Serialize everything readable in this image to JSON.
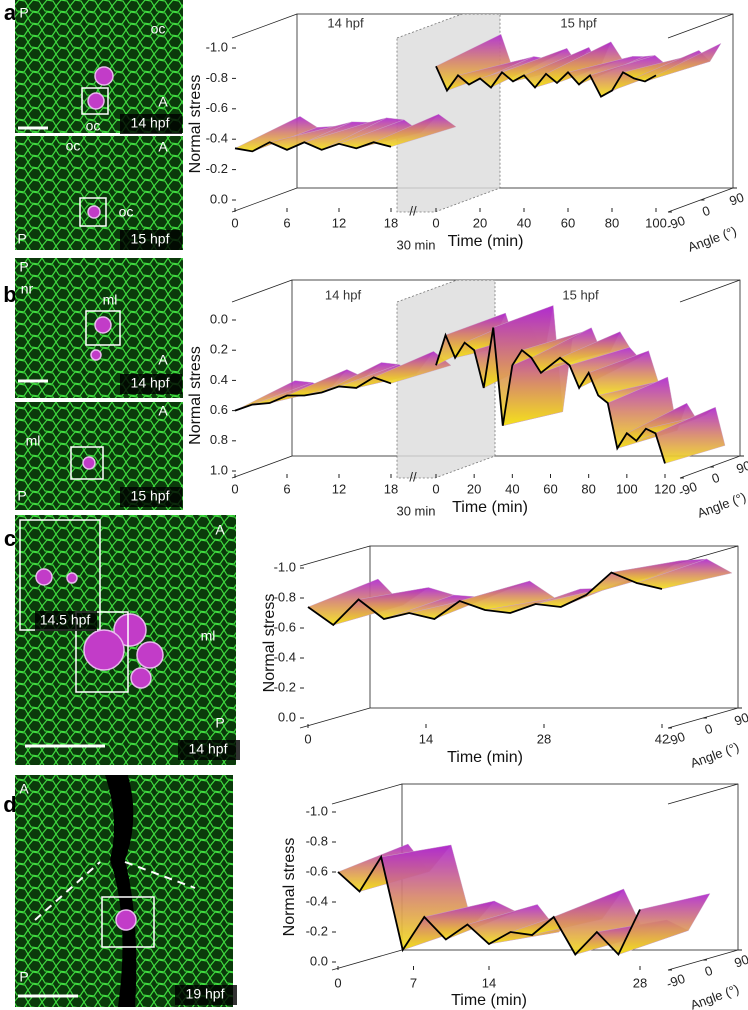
{
  "panels": [
    {
      "letter": "a",
      "images": [
        {
          "texts": [
            "P",
            "oc",
            "A",
            "oc",
            "14 hpf"
          ]
        },
        {
          "texts": [
            "oc",
            "A",
            "oc",
            "P",
            "15 hpf"
          ]
        }
      ]
    },
    {
      "letter": "b",
      "images": [
        {
          "texts": [
            "P",
            "nr",
            "ml",
            "A",
            "14 hpf"
          ]
        },
        {
          "texts": [
            "A",
            "ml",
            "P",
            "15 hpf"
          ]
        }
      ]
    },
    {
      "letter": "c",
      "images": [
        {
          "texts": [
            "A",
            "ml",
            "P",
            "14 hpf",
            "14.5 hpf"
          ]
        }
      ]
    },
    {
      "letter": "d",
      "images": [
        {
          "texts": [
            "A",
            "P",
            "19 hpf"
          ]
        }
      ]
    }
  ],
  "chart_data": [
    {
      "type": "line",
      "y_label": "Normal stress",
      "x_label": "Time (min)",
      "angle_label": "Angle (°)",
      "gap_label": "30 min",
      "color": "#000000",
      "ylim": [
        0,
        -1
      ],
      "yticks": [
        {
          "value": 0,
          "label": "0.0"
        },
        -0.2,
        -0.4,
        -0.6,
        -0.8,
        {
          "value": -1,
          "label": "-1.0"
        }
      ],
      "anglelim": [
        -90,
        90
      ],
      "angle_ticks": [
        -90,
        0,
        90
      ],
      "segments": [
        {
          "label": "14 hpf",
          "xlim": [
            0,
            18
          ],
          "xticks": [
            0,
            6,
            12,
            18
          ],
          "x": [
            0,
            2,
            4,
            6,
            8,
            10,
            12,
            14,
            16,
            18
          ],
          "values": [
            -0.34,
            -0.32,
            -0.38,
            -0.33,
            -0.38,
            -0.33,
            -0.37,
            -0.34,
            -0.38,
            -0.35
          ]
        },
        {
          "label": "15 hpf",
          "xlim": [
            0,
            100
          ],
          "xticks": [
            0,
            20,
            40,
            60,
            80,
            100
          ],
          "x": [
            0,
            5,
            10,
            15,
            20,
            25,
            30,
            35,
            40,
            45,
            50,
            55,
            60,
            65,
            70,
            75,
            80,
            85,
            90,
            95,
            100
          ],
          "values": [
            -0.88,
            -0.72,
            -0.82,
            -0.76,
            -0.8,
            -0.74,
            -0.84,
            -0.78,
            -0.82,
            -0.74,
            -0.83,
            -0.77,
            -0.84,
            -0.76,
            -0.82,
            -0.68,
            -0.72,
            -0.84,
            -0.8,
            -0.78,
            -0.82
          ]
        }
      ]
    },
    {
      "type": "line",
      "y_label": "Normal stress",
      "x_label": "Time (min)",
      "angle_label": "Angle (°)",
      "gap_label": "30 min",
      "color": "#000000",
      "ylim": [
        1,
        0
      ],
      "yticks": [
        {
          "value": 0,
          "label": "0.0"
        },
        0.2,
        0.4,
        0.6,
        0.8,
        {
          "value": 1,
          "label": "1.0"
        }
      ],
      "anglelim": [
        -90,
        90
      ],
      "angle_ticks": [
        -90,
        0,
        90
      ],
      "segments": [
        {
          "label": "14 hpf",
          "xlim": [
            0,
            18
          ],
          "xticks": [
            0,
            6,
            12,
            18
          ],
          "x": [
            0,
            2,
            4,
            6,
            8,
            10,
            12,
            14,
            16,
            18
          ],
          "values": [
            0.6,
            0.56,
            0.55,
            0.5,
            0.5,
            0.48,
            0.44,
            0.45,
            0.38,
            0.42
          ]
        },
        {
          "label": "15 hpf",
          "xlim": [
            0,
            120
          ],
          "xticks": [
            0,
            20,
            40,
            60,
            80,
            100,
            120
          ],
          "x": [
            0,
            5,
            10,
            15,
            20,
            25,
            30,
            35,
            40,
            45,
            50,
            55,
            60,
            65,
            70,
            75,
            80,
            85,
            90,
            95,
            100,
            105,
            110,
            115,
            120
          ],
          "values": [
            0.3,
            0.1,
            0.25,
            0.15,
            0.2,
            0.45,
            0.05,
            0.7,
            0.3,
            0.2,
            0.25,
            0.35,
            0.3,
            0.25,
            0.3,
            0.45,
            0.35,
            0.5,
            0.55,
            0.85,
            0.75,
            0.8,
            0.72,
            0.75,
            0.95
          ]
        }
      ]
    },
    {
      "type": "line",
      "y_label": "Normal stress",
      "x_label": "Time (min)",
      "angle_label": "Angle (°)",
      "color": "#000000",
      "ylim": [
        0,
        -1
      ],
      "yticks": [
        {
          "value": 0,
          "label": "0.0"
        },
        -0.2,
        -0.4,
        -0.6,
        -0.8,
        {
          "value": -1,
          "label": "-1.0"
        }
      ],
      "anglelim": [
        -90,
        90
      ],
      "angle_ticks": [
        -90,
        0,
        90
      ],
      "segments": [
        {
          "xlim": [
            0,
            42
          ],
          "xticks": [
            0,
            14,
            28,
            42
          ],
          "x": [
            0,
            3,
            6,
            9,
            12,
            15,
            18,
            21,
            24,
            27,
            30,
            33,
            36,
            39,
            42
          ],
          "values": [
            -0.74,
            -0.62,
            -0.79,
            -0.66,
            -0.7,
            -0.66,
            -0.78,
            -0.72,
            -0.7,
            -0.76,
            -0.74,
            -0.82,
            -0.97,
            -0.9,
            -0.86
          ]
        }
      ]
    },
    {
      "type": "line",
      "y_label": "Normal stress",
      "x_label": "Time (min)",
      "angle_label": "Angle (°)",
      "color": "#000000",
      "ylim": [
        0,
        -1
      ],
      "yticks": [
        {
          "value": 0,
          "label": "0.0"
        },
        -0.2,
        -0.4,
        -0.6,
        -0.8,
        {
          "value": -1,
          "label": "-1.0"
        }
      ],
      "anglelim": [
        -90,
        90
      ],
      "angle_ticks": [
        -90,
        0,
        90
      ],
      "segments": [
        {
          "xlim": [
            0,
            28
          ],
          "xticks": [
            0,
            7,
            14,
            28
          ],
          "x": [
            0,
            2,
            4,
            6,
            8,
            10,
            12,
            14,
            16,
            18,
            20,
            22,
            24,
            26,
            28
          ],
          "values": [
            -0.6,
            -0.47,
            -0.7,
            -0.08,
            -0.3,
            -0.15,
            -0.25,
            -0.12,
            -0.2,
            -0.18,
            -0.3,
            -0.05,
            -0.2,
            -0.05,
            -0.35
          ]
        }
      ]
    }
  ]
}
